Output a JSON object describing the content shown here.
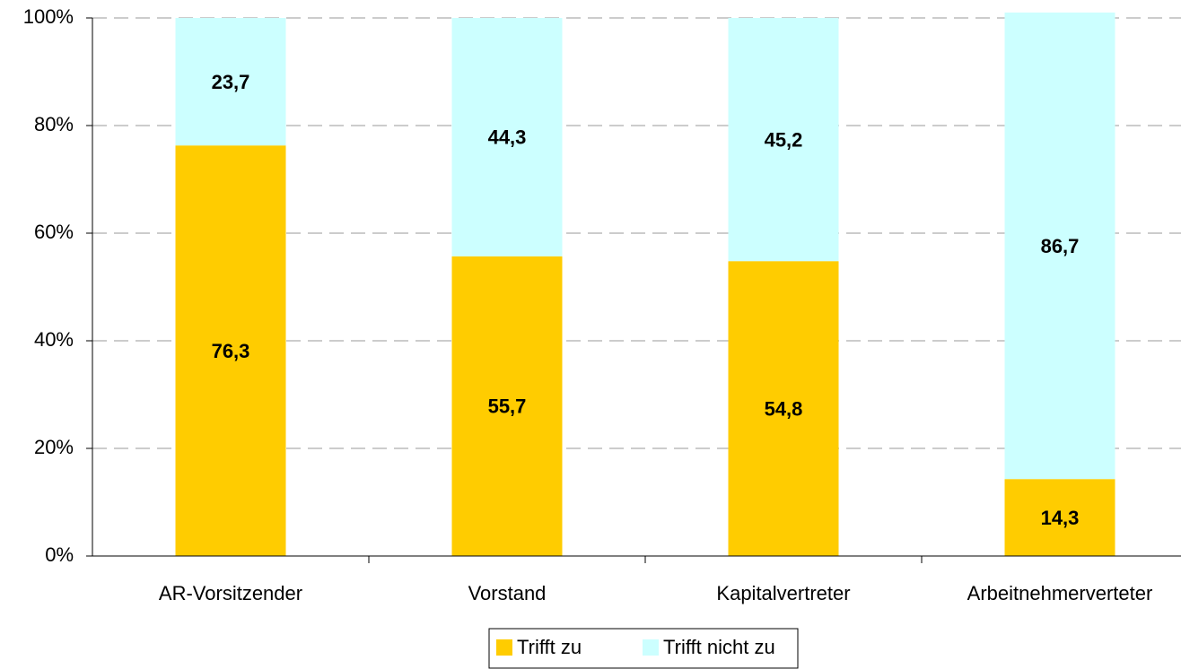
{
  "chart_data": {
    "type": "stacked_bar",
    "categories": [
      "AR-Vorsitzender",
      "Vorstand",
      "Kapitalvertreter",
      "Arbeitnehmerverteter"
    ],
    "series": [
      {
        "name": "Trifft zu",
        "color": "#ffcc00",
        "values": [
          76.3,
          55.7,
          54.8,
          14.3
        ],
        "value_labels": [
          "76,3",
          "55,7",
          "54,8",
          "14,3"
        ]
      },
      {
        "name": "Trifft nicht zu",
        "color": "#ccffff",
        "values": [
          23.7,
          44.3,
          45.2,
          86.7
        ],
        "value_labels": [
          "23,7",
          "44,3",
          "45,2",
          "86,7"
        ]
      }
    ],
    "ylim": [
      0,
      100
    ],
    "yticks": [
      {
        "value": 0,
        "label": "0%"
      },
      {
        "value": 20,
        "label": "20%"
      },
      {
        "value": 40,
        "label": "40%"
      },
      {
        "value": 60,
        "label": "60%"
      },
      {
        "value": 80,
        "label": "80%"
      },
      {
        "value": 100,
        "label": "100%"
      }
    ],
    "grid": true,
    "legend": "bottom"
  }
}
